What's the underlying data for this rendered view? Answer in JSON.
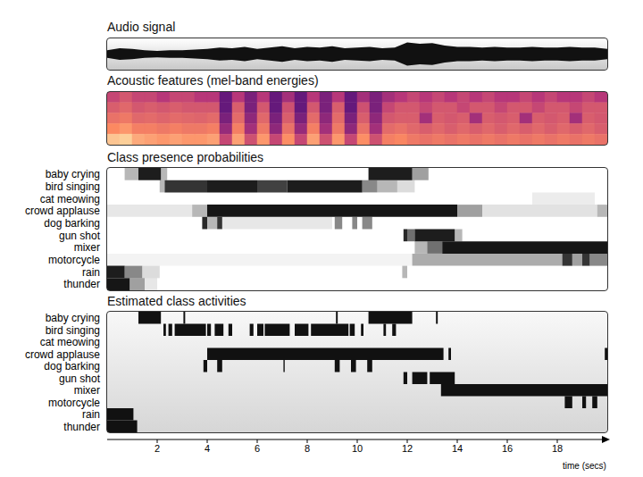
{
  "chart_data": [
    {
      "type": "area",
      "title": "Audio signal",
      "color": "#111111",
      "tick_labels": false,
      "xlim": [
        0,
        20
      ],
      "ylim": [
        -1,
        1
      ],
      "x": [
        0,
        0.5,
        1,
        1.5,
        2,
        2.5,
        3,
        3.5,
        4,
        4.5,
        5,
        5.5,
        6,
        6.5,
        7,
        7.5,
        8,
        8.5,
        9,
        9.5,
        10,
        10.5,
        11,
        11.5,
        12,
        12.5,
        13,
        13.5,
        14,
        14.5,
        15,
        15.5,
        16,
        16.5,
        17,
        17.5,
        18,
        18.5,
        19,
        19.5,
        20
      ],
      "values": [
        0.3,
        0.45,
        0.4,
        0.3,
        0.25,
        0.3,
        0.3,
        0.35,
        0.4,
        0.5,
        0.45,
        0.55,
        0.4,
        0.5,
        0.6,
        0.45,
        0.55,
        0.5,
        0.6,
        0.45,
        0.5,
        0.55,
        0.45,
        0.5,
        0.9,
        0.8,
        0.85,
        0.65,
        0.55,
        0.55,
        0.5,
        0.55,
        0.5,
        0.5,
        0.55,
        0.5,
        0.5,
        0.55,
        0.5,
        0.5,
        0.4
      ]
    },
    {
      "type": "heatmap",
      "title": "Acoustic features (mel-band energies)",
      "tick_labels": false,
      "xlim": [
        0,
        20
      ],
      "x": [
        0,
        0.5,
        1,
        1.5,
        2,
        2.5,
        3,
        3.5,
        4,
        4.5,
        5,
        5.5,
        6,
        6.5,
        7,
        7.5,
        8,
        8.5,
        9,
        9.5,
        10,
        10.5,
        11,
        11.5,
        12,
        12.5,
        13,
        13.5,
        14,
        14.5,
        15,
        15.5,
        16,
        16.5,
        17,
        17.5,
        18,
        18.5,
        19,
        19.5,
        20
      ],
      "cells": [
        [
          0.55,
          0.6,
          0.55,
          0.55,
          0.5,
          0.55,
          0.55,
          0.5,
          0.5,
          0.3,
          0.5,
          0.35,
          0.5,
          0.3,
          0.45,
          0.3,
          0.5,
          0.35,
          0.5,
          0.3,
          0.45,
          0.35,
          0.45,
          0.5,
          0.55,
          0.5,
          0.55,
          0.5,
          0.55,
          0.5,
          0.55,
          0.5,
          0.5,
          0.55,
          0.5,
          0.55,
          0.5,
          0.5,
          0.55,
          0.5
        ],
        [
          0.62,
          0.65,
          0.6,
          0.62,
          0.6,
          0.62,
          0.6,
          0.6,
          0.6,
          0.3,
          0.62,
          0.35,
          0.6,
          0.3,
          0.58,
          0.3,
          0.6,
          0.35,
          0.62,
          0.3,
          0.58,
          0.35,
          0.55,
          0.6,
          0.6,
          0.55,
          0.6,
          0.6,
          0.55,
          0.6,
          0.6,
          0.55,
          0.6,
          0.6,
          0.55,
          0.6,
          0.6,
          0.55,
          0.6,
          0.6
        ],
        [
          0.68,
          0.7,
          0.65,
          0.66,
          0.64,
          0.66,
          0.65,
          0.64,
          0.66,
          0.35,
          0.66,
          0.4,
          0.65,
          0.35,
          0.62,
          0.35,
          0.66,
          0.4,
          0.66,
          0.35,
          0.62,
          0.4,
          0.6,
          0.62,
          0.62,
          0.45,
          0.62,
          0.6,
          0.62,
          0.45,
          0.62,
          0.6,
          0.62,
          0.45,
          0.62,
          0.6,
          0.62,
          0.45,
          0.62,
          0.6
        ],
        [
          0.75,
          0.78,
          0.72,
          0.72,
          0.7,
          0.72,
          0.7,
          0.7,
          0.72,
          0.42,
          0.72,
          0.45,
          0.7,
          0.4,
          0.68,
          0.42,
          0.72,
          0.45,
          0.7,
          0.4,
          0.68,
          0.45,
          0.66,
          0.68,
          0.65,
          0.62,
          0.65,
          0.62,
          0.65,
          0.62,
          0.65,
          0.62,
          0.65,
          0.62,
          0.65,
          0.62,
          0.65,
          0.62,
          0.65,
          0.62
        ],
        [
          0.88,
          0.9,
          0.82,
          0.8,
          0.78,
          0.8,
          0.78,
          0.78,
          0.8,
          0.55,
          0.8,
          0.58,
          0.78,
          0.55,
          0.76,
          0.55,
          0.8,
          0.58,
          0.78,
          0.55,
          0.76,
          0.58,
          0.72,
          0.74,
          0.7,
          0.68,
          0.7,
          0.68,
          0.7,
          0.68,
          0.7,
          0.68,
          0.7,
          0.68,
          0.7,
          0.68,
          0.7,
          0.68,
          0.7,
          0.68
        ]
      ]
    },
    {
      "type": "heatmap",
      "title": "Class presence probabilities",
      "color": "#111111",
      "tick_labels": "y",
      "xlim": [
        0,
        20
      ],
      "categories": [
        "baby crying",
        "bird singing",
        "cat meowing",
        "crowd applause",
        "dog barking",
        "gun shot",
        "mixer",
        "motorcycle",
        "rain",
        "thunder"
      ],
      "segments": [
        [
          [
            0.7,
            1.25,
            0.3
          ],
          [
            1.25,
            2.15,
            0.95
          ],
          [
            2.15,
            2.4,
            0.3
          ],
          [
            10.45,
            12.2,
            0.95
          ],
          [
            12.2,
            12.85,
            0.4
          ]
        ],
        [
          [
            2.1,
            2.3,
            0.3
          ],
          [
            2.3,
            4.0,
            0.85
          ],
          [
            4.0,
            6.0,
            0.95
          ],
          [
            6.0,
            7.2,
            0.8
          ],
          [
            7.2,
            10.2,
            0.95
          ],
          [
            10.2,
            10.8,
            0.5
          ],
          [
            10.8,
            11.6,
            0.3
          ],
          [
            11.6,
            12.3,
            0.15
          ]
        ],
        [
          [
            17.0,
            19.5,
            0.08
          ]
        ],
        [
          [
            0,
            3.4,
            0.1
          ],
          [
            3.4,
            4.0,
            0.3
          ],
          [
            4.0,
            14.0,
            0.98
          ],
          [
            14.0,
            15.0,
            0.4
          ],
          [
            15.0,
            19.6,
            0.12
          ],
          [
            19.6,
            20,
            0.3
          ]
        ],
        [
          [
            3.8,
            4.0,
            0.9
          ],
          [
            4.0,
            4.4,
            0.3
          ],
          [
            4.4,
            4.6,
            0.85
          ],
          [
            4.6,
            9.0,
            0.1
          ],
          [
            9.1,
            9.4,
            0.5
          ],
          [
            9.8,
            10.0,
            0.5
          ],
          [
            10.2,
            10.6,
            0.5
          ]
        ],
        [
          [
            11.85,
            12.0,
            0.9
          ],
          [
            12.0,
            12.3,
            0.6
          ],
          [
            12.3,
            13.9,
            0.95
          ],
          [
            13.9,
            14.2,
            0.3
          ]
        ],
        [
          [
            12.3,
            12.8,
            0.3
          ],
          [
            12.8,
            13.4,
            0.6
          ],
          [
            13.4,
            20,
            0.98
          ]
        ],
        [
          [
            0,
            12.2,
            0.05
          ],
          [
            12.2,
            18.2,
            0.35
          ],
          [
            18.2,
            18.6,
            0.85
          ],
          [
            18.6,
            19.0,
            0.4
          ],
          [
            19.0,
            19.3,
            0.85
          ],
          [
            19.3,
            20,
            0.5
          ]
        ],
        [
          [
            0,
            0.7,
            0.95
          ],
          [
            0.7,
            1.4,
            0.5
          ],
          [
            1.4,
            2.1,
            0.15
          ],
          [
            11.8,
            12.0,
            0.3
          ]
        ],
        [
          [
            0,
            0.9,
            0.98
          ],
          [
            0.9,
            1.5,
            0.4
          ],
          [
            1.5,
            2.0,
            0.1
          ]
        ]
      ]
    },
    {
      "type": "timeline",
      "title": "Estimated class activities",
      "color": "#111111",
      "tick_labels": true,
      "xlim": [
        0,
        20
      ],
      "xticks": [
        2,
        4,
        6,
        8,
        10,
        12,
        14,
        16,
        18
      ],
      "xlabel": "time (secs)",
      "categories": [
        "baby crying",
        "bird singing",
        "cat meowing",
        "crowd applause",
        "dog barking",
        "gun shot",
        "mixer",
        "motorcycle",
        "rain",
        "thunder"
      ],
      "segments": [
        [
          [
            1.25,
            2.15
          ],
          [
            3.05,
            3.12
          ],
          [
            9.15,
            9.22
          ],
          [
            10.45,
            12.2
          ],
          [
            13.15,
            13.22
          ]
        ],
        [
          [
            2.25,
            2.35
          ],
          [
            2.45,
            2.6
          ],
          [
            2.7,
            3.95
          ],
          [
            4.0,
            4.15
          ],
          [
            4.3,
            4.65
          ],
          [
            4.85,
            5.0
          ],
          [
            5.7,
            5.85
          ],
          [
            6.0,
            6.25
          ],
          [
            6.3,
            7.3
          ],
          [
            7.5,
            8.05
          ],
          [
            8.15,
            9.65
          ],
          [
            9.7,
            9.9
          ],
          [
            10.15,
            10.25
          ],
          [
            11.05,
            11.15
          ],
          [
            11.4,
            11.55
          ]
        ],
        [],
        [
          [
            4.0,
            13.45
          ],
          [
            13.65,
            13.75
          ],
          [
            19.9,
            20
          ]
        ],
        [
          [
            3.85,
            4.0
          ],
          [
            4.4,
            4.6
          ],
          [
            7.05,
            7.1
          ],
          [
            9.1,
            9.3
          ],
          [
            9.75,
            9.95
          ],
          [
            10.4,
            10.6
          ]
        ],
        [
          [
            11.85,
            12.0
          ],
          [
            12.2,
            12.8
          ],
          [
            12.9,
            13.9
          ]
        ],
        [
          [
            13.35,
            20
          ]
        ],
        [
          [
            18.3,
            18.6
          ],
          [
            19.0,
            19.15
          ],
          [
            19.4,
            19.6
          ]
        ],
        [
          [
            0,
            1.05
          ]
        ],
        [
          [
            0,
            1.2
          ]
        ]
      ]
    }
  ]
}
